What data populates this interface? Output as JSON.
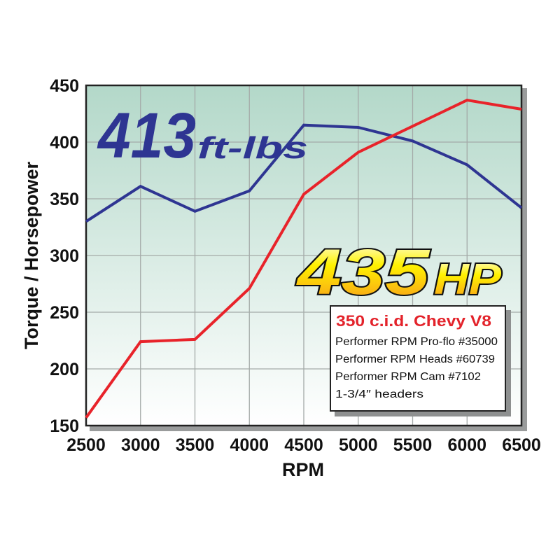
{
  "chart_data": {
    "type": "line",
    "title": "",
    "xlabel": "RPM",
    "ylabel": "Torque / Horsepower",
    "xlim": [
      2500,
      6500
    ],
    "ylim": [
      150,
      450
    ],
    "grid": true,
    "x": [
      2500,
      3000,
      3500,
      4000,
      4500,
      5000,
      5500,
      6000,
      6500
    ],
    "xticks": [
      "2500",
      "3000",
      "3500",
      "4000",
      "4500",
      "5000",
      "5500",
      "6000",
      "6500"
    ],
    "yticks": [
      "150",
      "200",
      "250",
      "300",
      "350",
      "400",
      "450"
    ],
    "series": [
      {
        "key": "torque",
        "color": "#2e3592",
        "values": [
          330,
          361,
          339,
          357,
          415,
          413,
          401,
          380,
          342
        ]
      },
      {
        "key": "horsepower",
        "color": "#e8232a",
        "values": [
          157,
          224,
          226,
          271,
          354,
          391,
          414,
          437,
          429
        ]
      }
    ],
    "annotations": {
      "torque_value": "413",
      "torque_unit": "ft-lbs",
      "hp_value": "435",
      "hp_unit": "HP"
    },
    "legend_box": {
      "title": "350 c.i.d. Chevy V8",
      "items": [
        "Performer RPM Pro-flo #35000",
        "Performer RPM Heads #60739",
        "Performer RPM Cam #7102",
        "1-3/4″ headers"
      ]
    },
    "colors": {
      "background_top": "#b3d8c9",
      "background_bottom": "#ffffff",
      "grid": "#a4aaa8"
    }
  }
}
